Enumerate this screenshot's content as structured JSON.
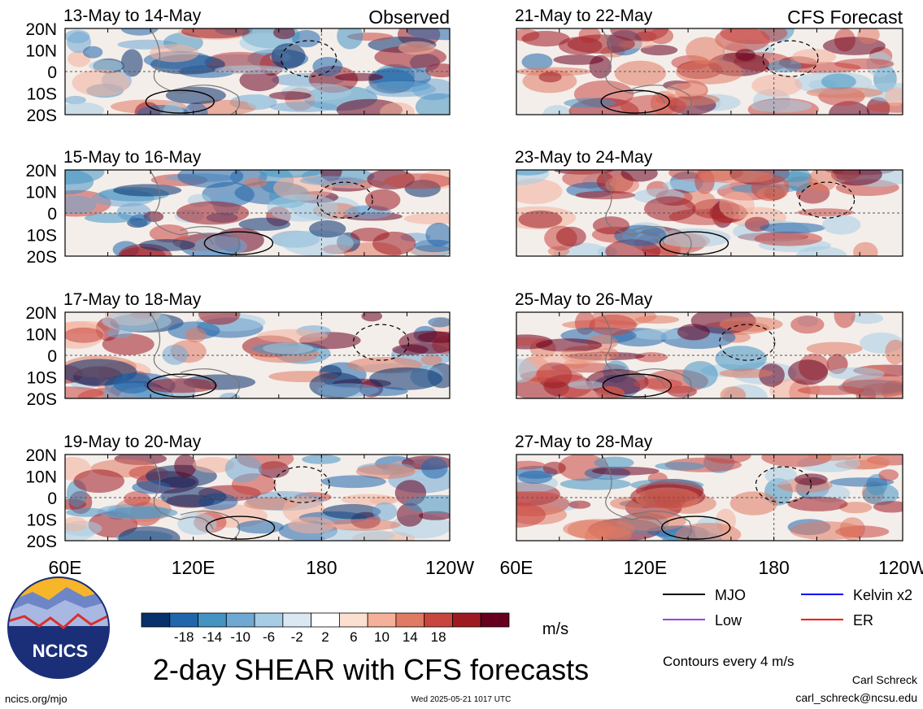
{
  "header": {
    "left_label": "Observed",
    "right_label": "CFS Forecast"
  },
  "chart_data": {
    "type": "heatmap",
    "title": "2-day SHEAR with CFS forecasts",
    "units": "m/s",
    "contour_note": "Contours every 4 m/s",
    "lon_ticks": [
      "60E",
      "120E",
      "180",
      "120W"
    ],
    "lat_ticks": [
      "20N",
      "10N",
      "0",
      "10S",
      "20S"
    ],
    "lon_range": [
      60,
      240
    ],
    "lat_range": [
      -20,
      20
    ],
    "colorbar_labels": [
      "-18",
      "-14",
      "-10",
      "-6",
      "-2",
      "2",
      "6",
      "10",
      "14",
      "18"
    ],
    "colorbar_colors": [
      "#08306b",
      "#2166ac",
      "#4393c3",
      "#6fa8d3",
      "#a6cde3",
      "#d9e8f2",
      "#ffffff",
      "#fbe0d0",
      "#f4b09a",
      "#e07a62",
      "#c8463f",
      "#9e1a22",
      "#67001f"
    ],
    "panels": [
      {
        "label": "13-May to 14-May",
        "source": "Observed"
      },
      {
        "label": "15-May to 16-May",
        "source": "Observed"
      },
      {
        "label": "17-May to 18-May",
        "source": "Observed"
      },
      {
        "label": "19-May to 20-May",
        "source": "Observed"
      },
      {
        "label": "21-May to 22-May",
        "source": "CFS Forecast"
      },
      {
        "label": "23-May to 24-May",
        "source": "CFS Forecast"
      },
      {
        "label": "25-May to 26-May",
        "source": "CFS Forecast"
      },
      {
        "label": "27-May to 28-May",
        "source": "CFS Forecast"
      }
    ],
    "legend": [
      {
        "name": "MJO",
        "color": "#000000"
      },
      {
        "name": "Kelvin x2",
        "color": "#0000ff"
      },
      {
        "name": "Low",
        "color": "#a040e0"
      },
      {
        "name": "ER",
        "color": "#ff0000"
      }
    ]
  },
  "footer": {
    "logo_text": "NCICS",
    "website": "ncics.org/mjo",
    "timestamp": "Wed 2025-05-21 1017 UTC",
    "author": "Carl Schreck",
    "email": "carl_schreck@ncsu.edu"
  }
}
